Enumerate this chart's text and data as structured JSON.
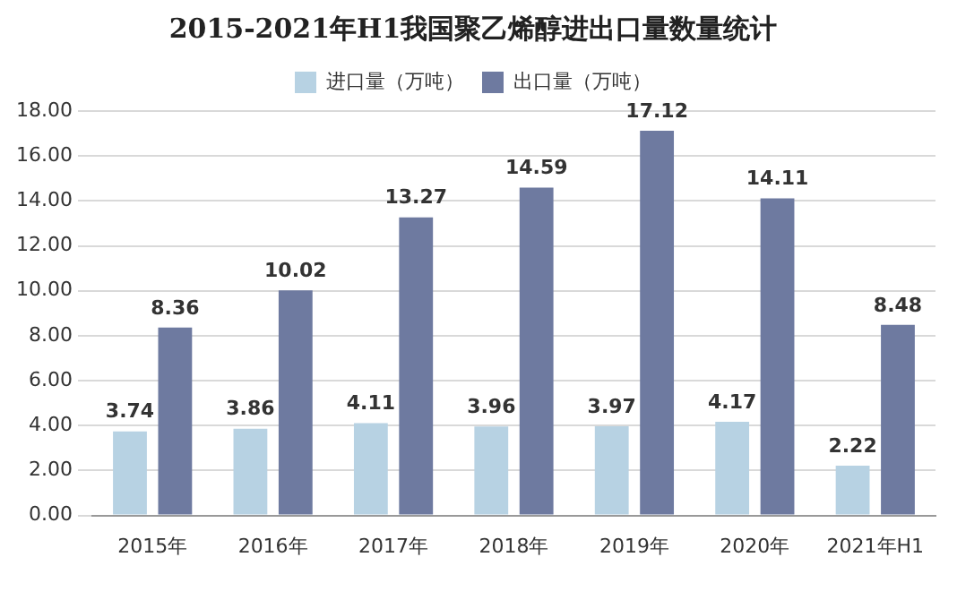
{
  "chart_data": {
    "type": "bar",
    "title": "2015-2021年H1我国聚乙烯醇进出口量数量统计",
    "categories": [
      "2015年",
      "2016年",
      "2017年",
      "2018年",
      "2019年",
      "2020年",
      "2021年H1"
    ],
    "series": [
      {
        "name": "进口量（万吨）",
        "color": "#b7d2e3",
        "values": [
          3.74,
          3.86,
          4.11,
          3.96,
          3.97,
          4.17,
          2.22
        ]
      },
      {
        "name": "出口量（万吨）",
        "color": "#6e7aa0",
        "values": [
          8.36,
          10.02,
          13.27,
          14.59,
          17.12,
          14.11,
          8.48
        ]
      }
    ],
    "ylim": [
      0,
      18
    ],
    "yticks": [
      {
        "value": 0,
        "label": "0.00"
      },
      {
        "value": 2,
        "label": "2.00"
      },
      {
        "value": 4,
        "label": "4.00"
      },
      {
        "value": 6,
        "label": "6.00"
      },
      {
        "value": 8,
        "label": "8.00"
      },
      {
        "value": 10,
        "label": "10.00"
      },
      {
        "value": 12,
        "label": "12.00"
      },
      {
        "value": 14,
        "label": "14.00"
      },
      {
        "value": 16,
        "label": "16.00"
      },
      {
        "value": 18,
        "label": "18.00"
      }
    ],
    "grid": "y",
    "legend": "top",
    "data_labels": true
  }
}
